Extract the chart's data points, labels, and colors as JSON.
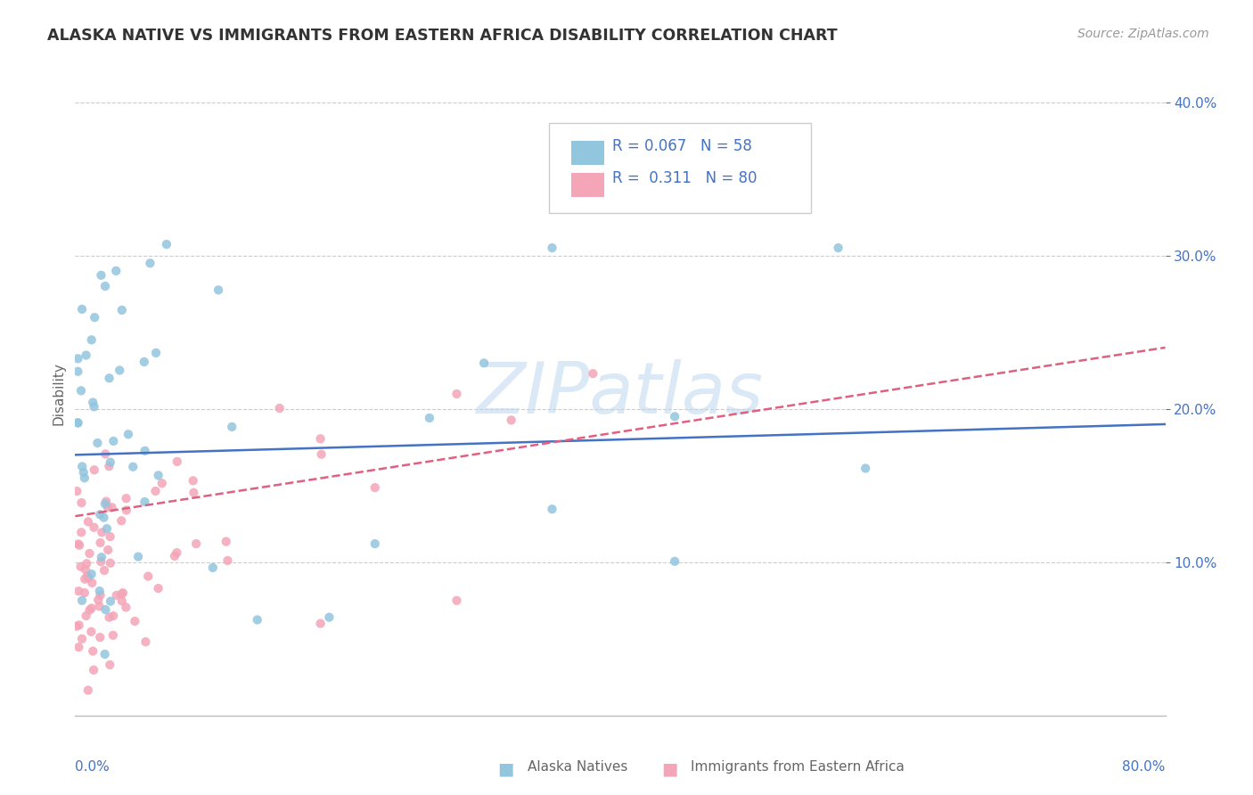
{
  "title": "ALASKA NATIVE VS IMMIGRANTS FROM EASTERN AFRICA DISABILITY CORRELATION CHART",
  "source": "Source: ZipAtlas.com",
  "ylabel": "Disability",
  "xlim": [
    0.0,
    0.8
  ],
  "ylim": [
    0.0,
    0.42
  ],
  "color_blue": "#92C5DE",
  "color_pink": "#F4A5B8",
  "color_trend_blue": "#4472C4",
  "color_trend_pink": "#E06080",
  "watermark_color": "#D8E8F0",
  "background_color": "#FFFFFF",
  "grid_color": "#CCCCCC",
  "text_color_blue": "#4472C4",
  "text_color_gray": "#666666",
  "title_color": "#333333",
  "source_color": "#999999",
  "alaska_trend_start_y": 0.17,
  "alaska_trend_end_y": 0.19,
  "eastern_trend_start_y": 0.13,
  "eastern_trend_end_y": 0.24,
  "seed": 12
}
